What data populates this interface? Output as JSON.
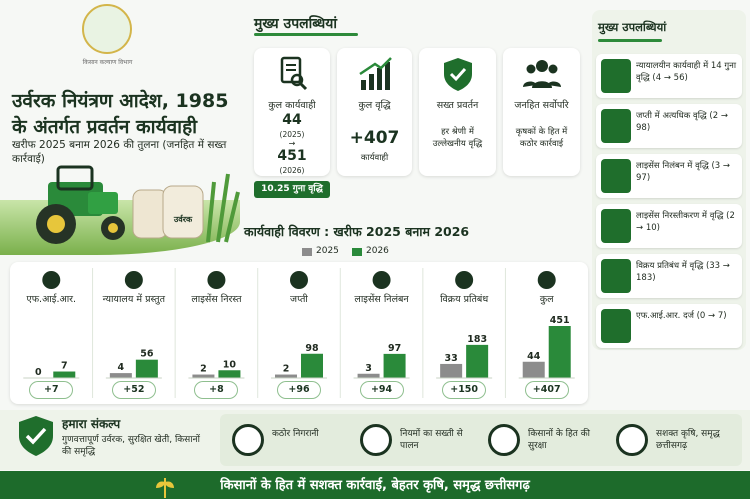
{
  "hero": {
    "emblem_text": "किसान कल्याण विभाग",
    "title": "उर्वरक नियंत्रण आदेश, 1985 के अंतर्गत प्रवर्तन कार्यवाही",
    "subtitle": "खरीफ 2025 बनाम 2026 की तुलना (जनहित में सख्त कार्रवाई)",
    "sack_label": "उर्वरक"
  },
  "highlights": {
    "title": "मुख्य उपलब्धियां",
    "total_actions": {
      "label": "कुल कार्यवाही",
      "v2025": "44",
      "y2025": "(2025)",
      "arrow": "→",
      "v2026": "451",
      "y2026": "(2026)",
      "badge": "10.25 गुना वृद्धि"
    },
    "total_growth": {
      "label": "कुल वृद्धि",
      "value": "+407",
      "unit": "कार्यवाही"
    },
    "strict": {
      "label": "सख्त प्रवर्तन",
      "desc": "हर श्रेणी में उल्लेखनीय वृद्धि"
    },
    "public_interest": {
      "label": "जनहित सर्वोपरि",
      "desc": "कृषकों के हित में कठोर कार्रवाई"
    }
  },
  "right_panel": {
    "title": "मुख्य उपलब्धियां",
    "items": [
      {
        "icon": "gavel-icon",
        "text": "न्यायालयीन कार्यवाही में 14 गुना वृद्धि (4 → 56)"
      },
      {
        "icon": "shield-check-icon",
        "text": "जप्ती में अत्यधिक वृद्धि (2 → 98)"
      },
      {
        "icon": "hand-stop-icon",
        "text": "लाइसेंस निलंबन में वृद्धि (3 → 97)"
      },
      {
        "icon": "license-cancel-icon",
        "text": "लाइसेंस निरस्तीकरण में वृद्धि (2 → 10)"
      },
      {
        "icon": "barrier-icon",
        "text": "विक्रय प्रतिबंध में वृद्धि (33 → 183)"
      },
      {
        "icon": "police-cap-icon",
        "text": "एफ.आई.आर. दर्ज (0 → 7)"
      }
    ]
  },
  "chart_data": {
    "type": "bar",
    "title": "कार्यवाही विवरण : खरीफ 2025 बनाम 2026",
    "legend": [
      "2025",
      "2026"
    ],
    "legend_position": "top",
    "categories": [
      "एफ.आई.आर.",
      "न्यायालय में प्रस्तुत",
      "लाइसेंस निरस्त",
      "जप्ती",
      "लाइसेंस निलंबन",
      "विक्रय प्रतिबंध",
      "कुल"
    ],
    "series": [
      {
        "name": "2025",
        "color": "#8c8c8c",
        "values": [
          0,
          4,
          2,
          2,
          3,
          33,
          44
        ]
      },
      {
        "name": "2026",
        "color": "#2a8a3a",
        "values": [
          7,
          56,
          10,
          98,
          97,
          183,
          451
        ]
      }
    ],
    "deltas": [
      "+7",
      "+52",
      "+8",
      "+96",
      "+94",
      "+150",
      "+407"
    ],
    "icons": [
      "police-cap-icon",
      "scales-icon",
      "license-cancel-icon",
      "box-icon",
      "hand-stop-icon",
      "barrier-icon",
      "people-icon"
    ]
  },
  "pledge": {
    "title": "हमारा संकल्प",
    "text": "गुणवत्तापूर्ण उर्वरक, सुरक्षित खेती, किसानों की समृद्धि",
    "items": [
      {
        "icon": "target-icon",
        "text": "कठोर निगरानी"
      },
      {
        "icon": "magnifier-icon",
        "text": "नियमों का सख्ती से पालन"
      },
      {
        "icon": "farmers-icon",
        "text": "किसानों के हित की सुरक्षा"
      },
      {
        "icon": "plant-hand-icon",
        "text": "सशक्त कृषि, समृद्ध छत्तीसगढ़"
      }
    ]
  },
  "banner": {
    "text": "किसानों के हित में सशक्त कार्रवाई, बेहतर कृषि, समृद्ध छत्तीसगढ़"
  }
}
